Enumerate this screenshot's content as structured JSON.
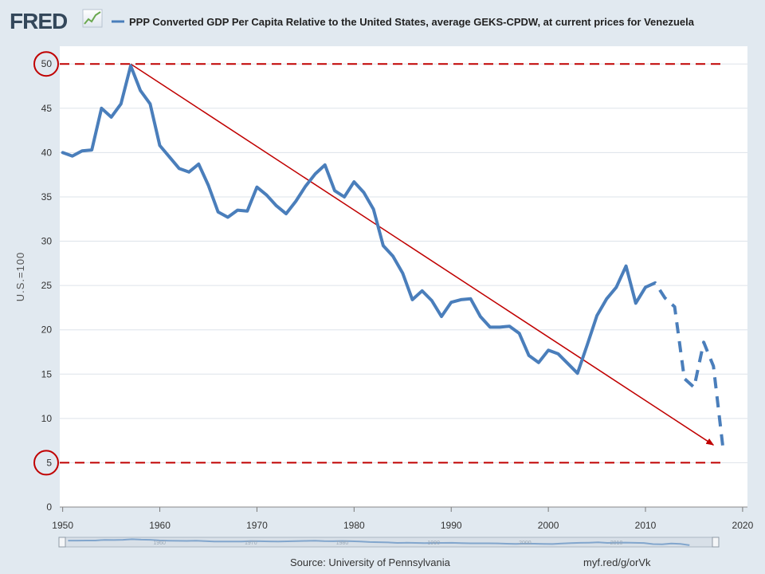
{
  "header": {
    "logo_text": "FRED",
    "legend_label": "PPP Converted GDP Per Capita Relative to the United States, average GEKS-CPDW,  at current prices for Venezuela"
  },
  "footer": {
    "source": "Source: University of Pennsylvania",
    "short_link": "myf.red/g/orVk"
  },
  "colors": {
    "series": "#4a7ebb",
    "annotation": "#c00000",
    "plot_background": "#ffffff",
    "page_background": "#e1e9f0"
  },
  "chart_data": {
    "type": "line",
    "title": "PPP Converted GDP Per Capita Relative to the United States, average GEKS-CPDW,  at current prices for Venezuela",
    "xlabel": "",
    "ylabel": "U.S.=100",
    "xlim": [
      1949.7,
      2020.5
    ],
    "ylim": [
      0,
      52
    ],
    "x_ticks": [
      1950,
      1960,
      1970,
      1980,
      1990,
      2000,
      2010,
      2020
    ],
    "y_ticks": [
      0,
      5,
      10,
      15,
      20,
      25,
      30,
      35,
      40,
      45,
      50
    ],
    "grid": true,
    "series": [
      {
        "name": "Venezuela (solid)",
        "style": "solid",
        "x": [
          1950,
          1951,
          1952,
          1953,
          1954,
          1955,
          1956,
          1957,
          1958,
          1959,
          1960,
          1961,
          1962,
          1963,
          1964,
          1965,
          1966,
          1967,
          1968,
          1969,
          1970,
          1971,
          1972,
          1973,
          1974,
          1975,
          1976,
          1977,
          1978,
          1979,
          1980,
          1981,
          1982,
          1983,
          1984,
          1985,
          1986,
          1987,
          1988,
          1989,
          1990,
          1991,
          1992,
          1993,
          1994,
          1995,
          1996,
          1997,
          1998,
          1999,
          2000,
          2001,
          2002,
          2003,
          2004,
          2005,
          2006,
          2007,
          2008,
          2009,
          2010
        ],
        "y": [
          40.0,
          39.6,
          40.2,
          40.3,
          45.0,
          44.0,
          45.5,
          49.8,
          47.0,
          45.5,
          40.8,
          39.5,
          38.2,
          37.8,
          38.7,
          36.3,
          33.3,
          32.7,
          33.5,
          33.4,
          36.1,
          35.2,
          34.0,
          33.1,
          34.5,
          36.2,
          37.6,
          38.6,
          35.7,
          35.0,
          36.7,
          35.5,
          33.6,
          29.5,
          28.3,
          26.4,
          23.4,
          24.4,
          23.3,
          21.5,
          23.1,
          23.4,
          23.5,
          21.5,
          20.3,
          20.3,
          20.4,
          19.6,
          17.1,
          16.3,
          17.7,
          17.3,
          16.2,
          15.1,
          18.3,
          21.6,
          23.5,
          24.8,
          27.2,
          23.0,
          24.8
        ]
      },
      {
        "name": "Venezuela (dashed)",
        "style": "dashed",
        "x": [
          2010,
          2011,
          2012,
          2013,
          2014,
          2015,
          2016,
          2017,
          2018
        ],
        "y": [
          24.8,
          25.3,
          23.6,
          22.6,
          14.5,
          13.5,
          18.6,
          15.9,
          6.5
        ]
      }
    ],
    "annotations": [
      {
        "type": "hline",
        "y": 50,
        "label": "50",
        "style": "dashed",
        "circled_label": true
      },
      {
        "type": "hline",
        "y": 5,
        "label": "5",
        "style": "dashed",
        "circled_label": true
      },
      {
        "type": "arrow",
        "from": [
          1957,
          50
        ],
        "to": [
          2017,
          7
        ]
      }
    ]
  },
  "range_selector": {
    "mini_ticks": [
      "1960",
      "1970",
      "1980",
      "1990",
      "2000",
      "2010"
    ]
  }
}
